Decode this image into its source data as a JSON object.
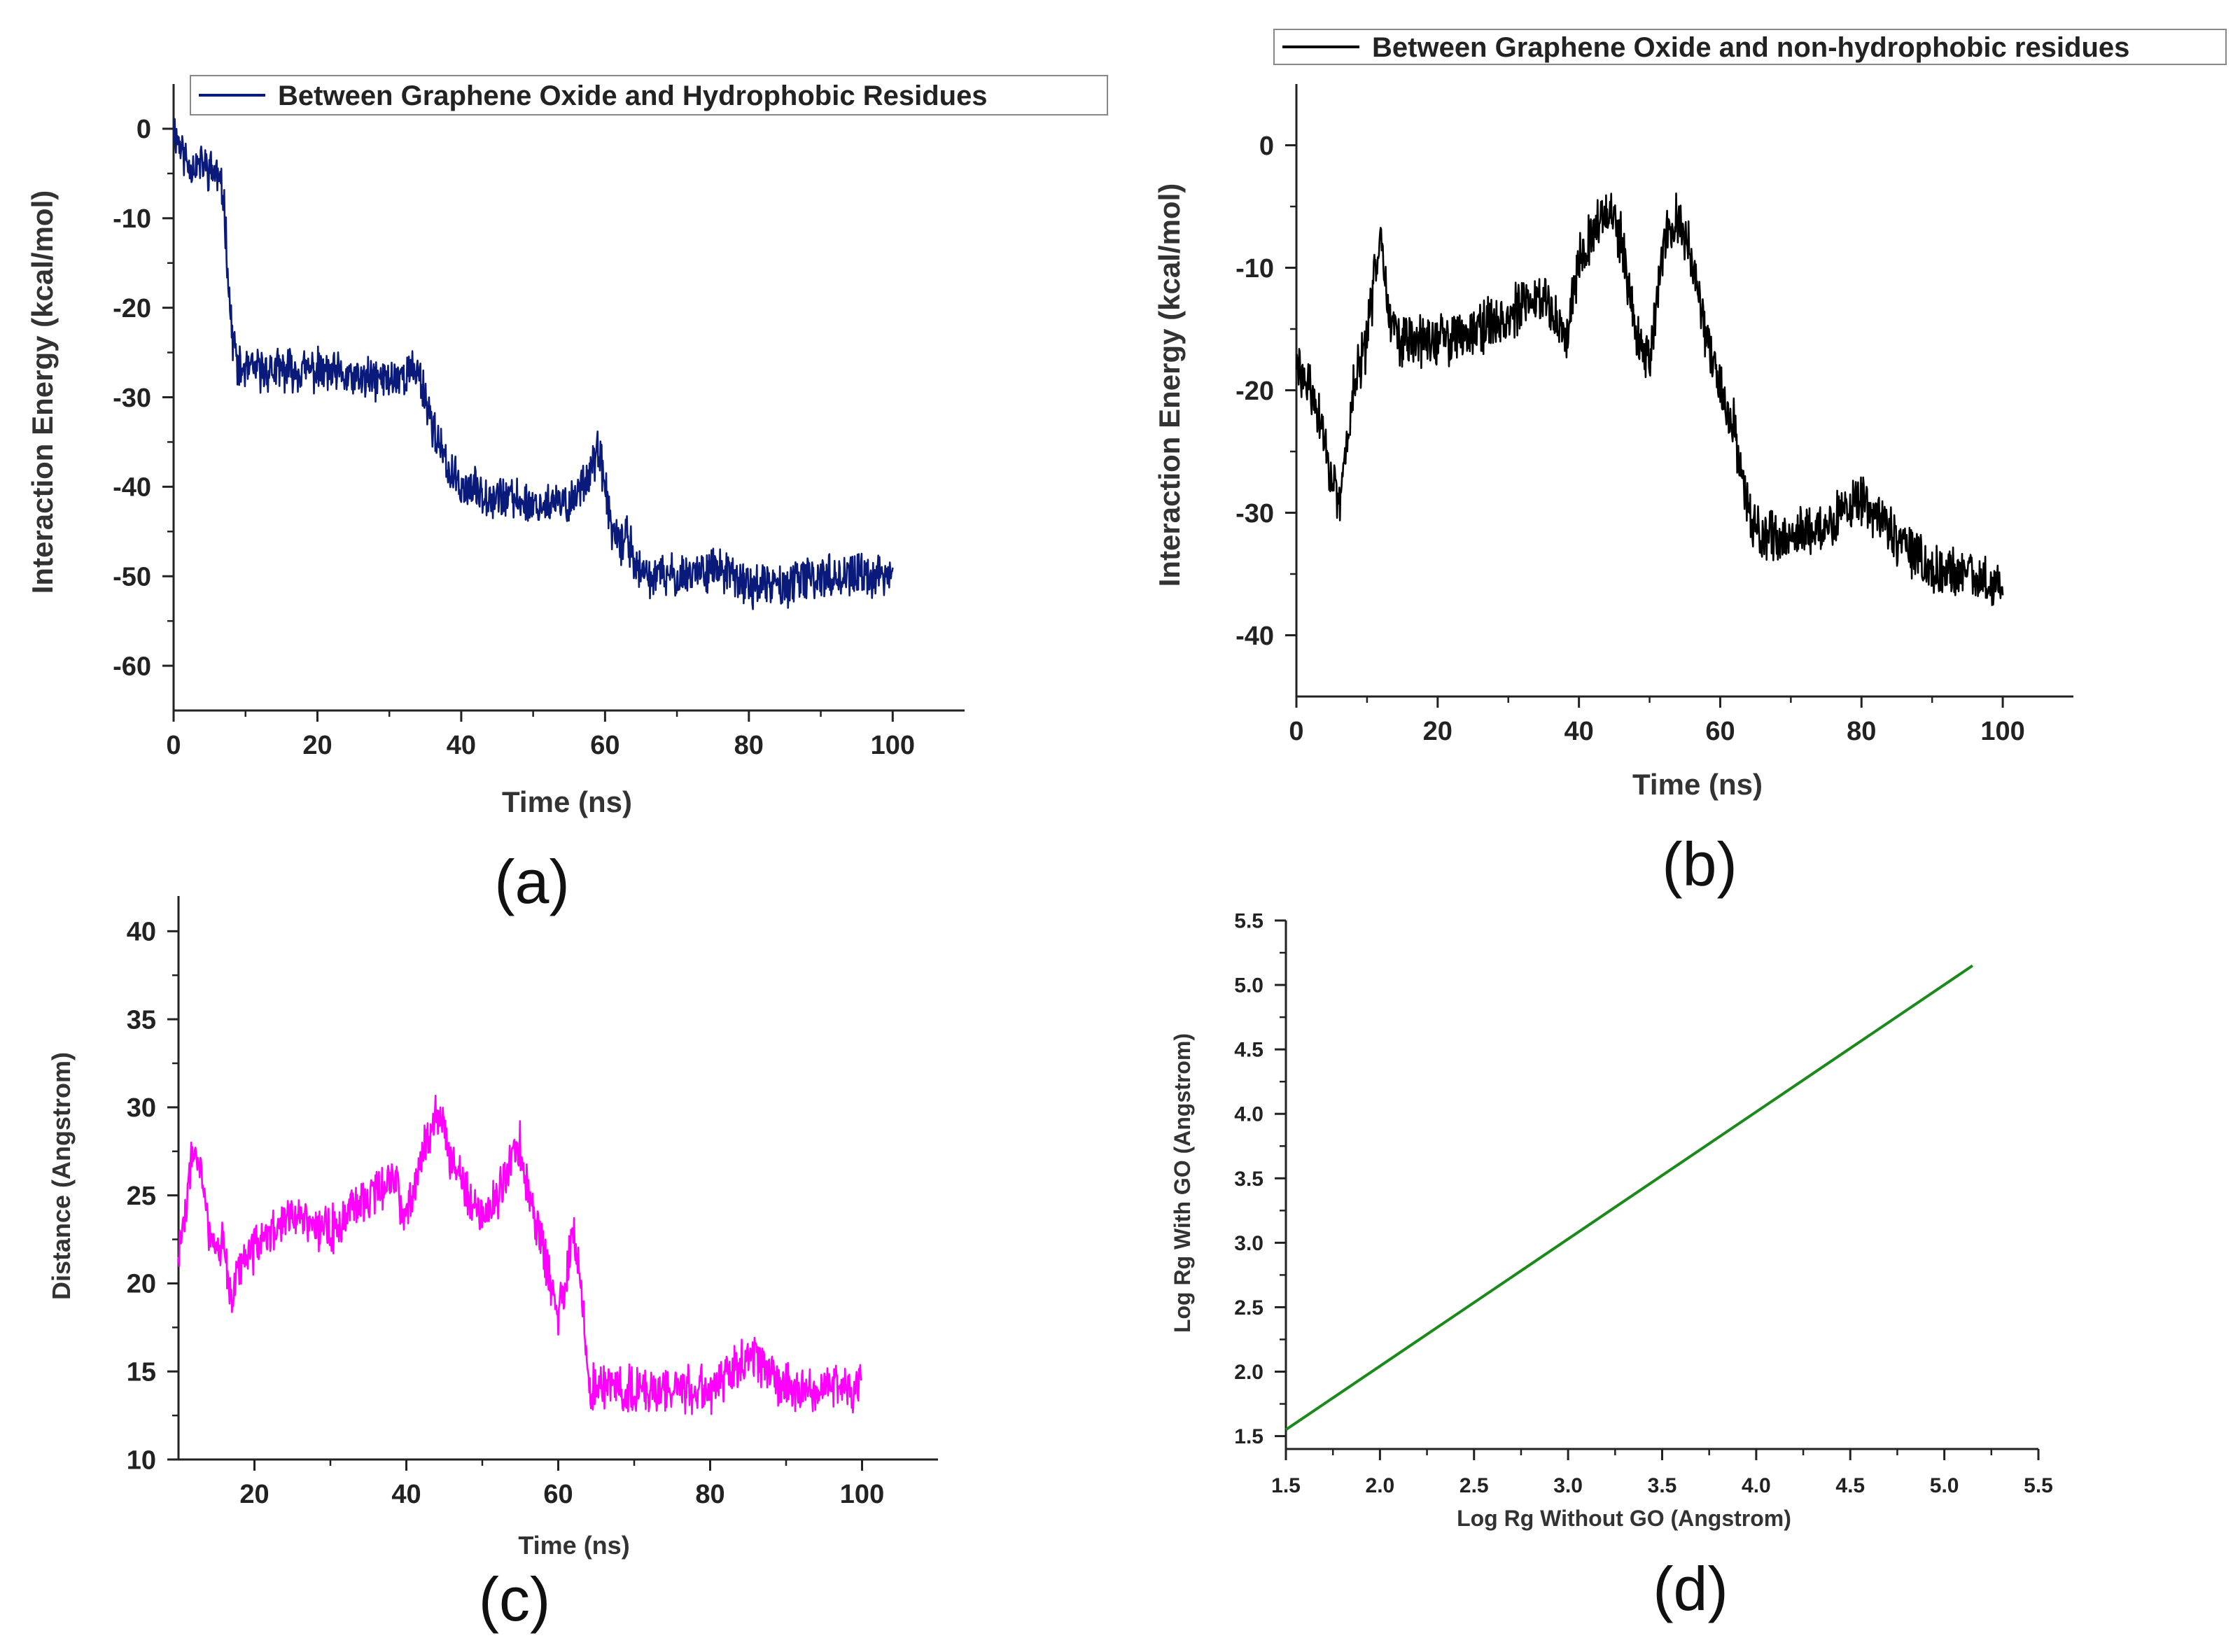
{
  "chart_data": [
    {
      "panel": "(a)",
      "type": "line",
      "legend": "Between Graphene Oxide and Hydrophobic Residues",
      "xlabel": "Time (ns)",
      "ylabel": "Interaction Energy (kcal/mol)",
      "xlim": [
        0,
        110
      ],
      "ylim": [
        -65,
        5
      ],
      "xticks": [
        0,
        20,
        40,
        60,
        80,
        100
      ],
      "yticks": [
        0,
        -10,
        -20,
        -30,
        -40,
        -50,
        -60
      ],
      "color": "#0a1a7a",
      "series": [
        {
          "name": "Between Graphene Oxide and Hydrophobic Residues",
          "x": [
            0,
            2,
            4,
            6,
            7,
            8,
            9,
            10,
            15,
            20,
            25,
            30,
            34,
            36,
            38,
            40,
            45,
            50,
            55,
            58,
            59,
            60,
            61,
            62,
            63,
            64,
            65,
            70,
            75,
            80,
            85,
            90,
            95,
            100
          ],
          "y": [
            0,
            -4,
            -4,
            -5,
            -8,
            -22,
            -27,
            -27,
            -27,
            -27,
            -28,
            -28,
            -27,
            -33,
            -38,
            -40,
            -41,
            -42,
            -42,
            -38,
            -36,
            -40,
            -45,
            -47,
            -45,
            -48,
            -50,
            -50,
            -49,
            -51,
            -51,
            -50,
            -50,
            -50
          ]
        }
      ]
    },
    {
      "panel": "(b)",
      "type": "line",
      "legend": "Between Graphene Oxide and non-hydrophobic residues",
      "xlabel": "Time (ns)",
      "ylabel": "Interaction Energy (kcal/mol)",
      "xlim": [
        0,
        110
      ],
      "ylim": [
        -45,
        5
      ],
      "xticks": [
        0,
        20,
        40,
        60,
        80,
        100
      ],
      "yticks": [
        0,
        -10,
        -20,
        -30,
        -40
      ],
      "color": "#000000",
      "series": [
        {
          "name": "Between Graphene Oxide and non-hydrophobic residues",
          "x": [
            0,
            2,
            4,
            6,
            8,
            10,
            12,
            13,
            15,
            20,
            25,
            30,
            35,
            38,
            40,
            42,
            44,
            46,
            48,
            50,
            52,
            54,
            56,
            58,
            60,
            62,
            64,
            66,
            70,
            75,
            80,
            85,
            90,
            95,
            100
          ],
          "y": [
            -18,
            -20,
            -24,
            -30,
            -20,
            -16,
            -6,
            -14,
            -16,
            -16,
            -15,
            -14,
            -12,
            -16,
            -9,
            -7,
            -5,
            -8,
            -15,
            -18,
            -8,
            -6,
            -9,
            -16,
            -20,
            -23,
            -30,
            -32,
            -32,
            -31,
            -29,
            -32,
            -35,
            -35,
            -36
          ]
        }
      ]
    },
    {
      "panel": "(c)",
      "type": "line",
      "xlabel": "Time (ns)",
      "ylabel": "Distance (Angstrom)",
      "xlim": [
        10,
        110
      ],
      "ylim": [
        10,
        42
      ],
      "xticks": [
        20,
        40,
        60,
        80,
        100
      ],
      "yticks": [
        10,
        15,
        20,
        25,
        30,
        35,
        40
      ],
      "color": "#ff00ff",
      "series": [
        {
          "name": "Distance",
          "x": [
            10,
            11,
            12,
            13,
            14,
            16,
            17,
            18,
            20,
            25,
            30,
            35,
            38,
            40,
            42,
            44,
            46,
            48,
            50,
            52,
            54,
            55,
            56,
            58,
            60,
            61,
            62,
            63,
            64,
            66,
            70,
            75,
            80,
            85,
            88,
            90,
            95,
            100
          ],
          "y": [
            22,
            24,
            28,
            26,
            23,
            22,
            19,
            21,
            22,
            24,
            23,
            25,
            26,
            24,
            27,
            30,
            27,
            25,
            24,
            25,
            27,
            28,
            25,
            22,
            18,
            20,
            23,
            20,
            14,
            14,
            14,
            14,
            14,
            16,
            15,
            14,
            14,
            14
          ]
        }
      ]
    },
    {
      "panel": "(d)",
      "type": "line",
      "xlabel": "Log Rg Without GO (Angstrom)",
      "ylabel": "Log Rg With GO (Angstrom)",
      "xlim": [
        1.5,
        5.5
      ],
      "ylim": [
        1.4,
        5.5
      ],
      "xticks": [
        1.5,
        2.0,
        2.5,
        3.0,
        3.5,
        4.0,
        4.5,
        5.0,
        5.5
      ],
      "yticks": [
        1.5,
        2.0,
        2.5,
        3.0,
        3.5,
        4.0,
        4.5,
        5.0,
        5.5
      ],
      "color": "#1a8a1a",
      "series": [
        {
          "name": "Log Rg",
          "x": [
            1.5,
            5.15
          ],
          "y": [
            1.55,
            5.15
          ]
        }
      ]
    }
  ]
}
